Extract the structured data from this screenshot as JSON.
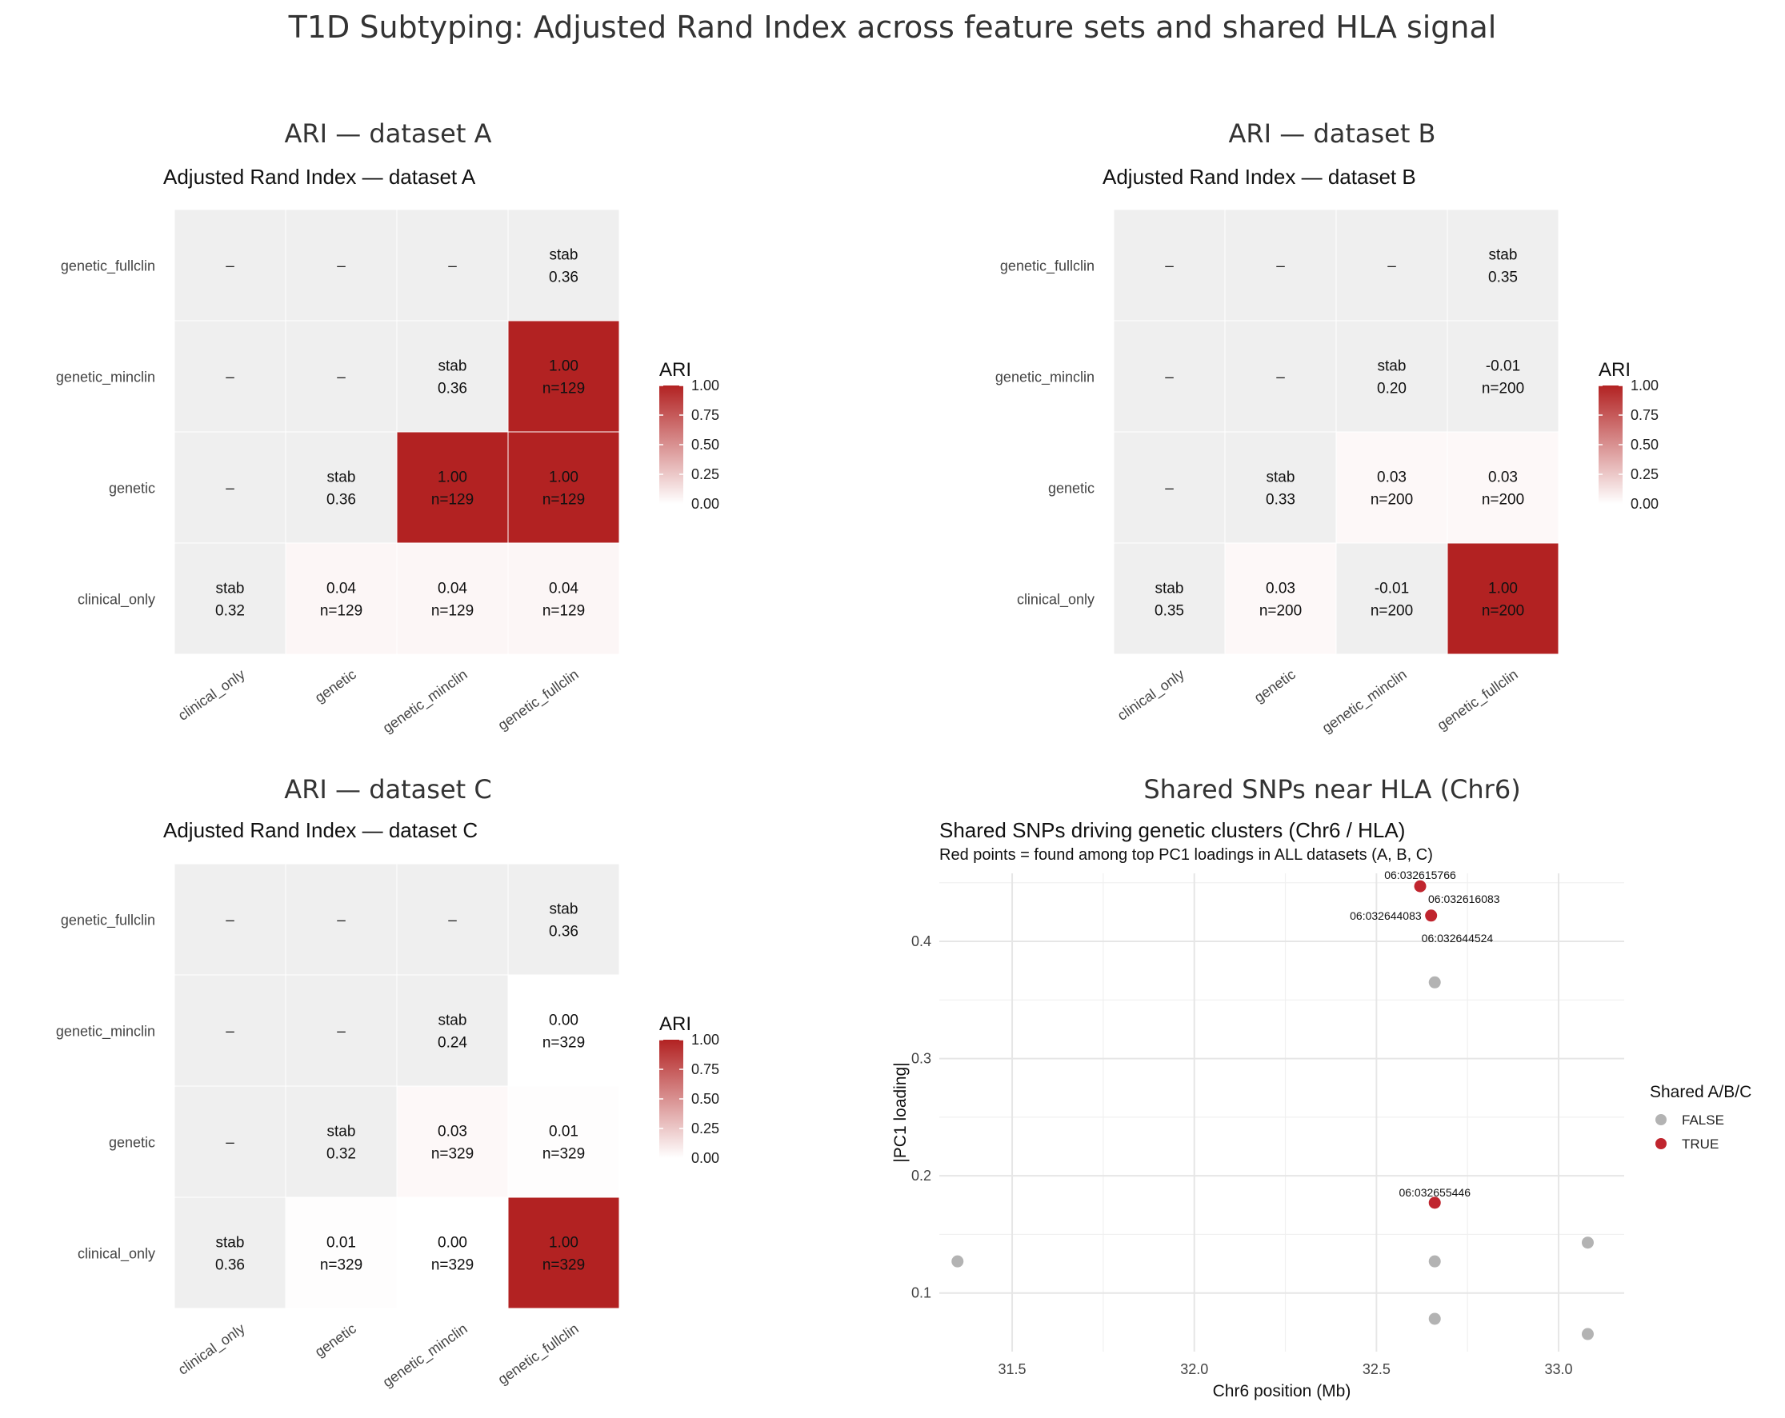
{
  "suptitle": "T1D Subtyping: Adjusted Rand Index across feature sets and shared HLA signal",
  "legend_ari": {
    "title": "ARI",
    "ticks": [
      "1.00",
      "0.75",
      "0.50",
      "0.25",
      "0.00"
    ],
    "color_low": "#ffffff",
    "color_high": "#b22222"
  },
  "heatmap_rows_top_to_bottom": [
    "genetic_fullclin",
    "genetic_minclin",
    "genetic",
    "clinical_only"
  ],
  "heatmap_cols": [
    "clinical_only",
    "genetic",
    "genetic_minclin",
    "genetic_fullclin"
  ],
  "chart_data": [
    {
      "type": "heatmap",
      "panel_title": "ARI — dataset A",
      "title": "Adjusted Rand Index — dataset A",
      "cells": [
        [
          {
            "l1": "–",
            "l2": ""
          },
          {
            "l1": "–",
            "l2": ""
          },
          {
            "l1": "–",
            "l2": ""
          },
          {
            "l1": "stab",
            "l2": "0.36"
          }
        ],
        [
          {
            "l1": "–",
            "l2": ""
          },
          {
            "l1": "–",
            "l2": ""
          },
          {
            "l1": "stab",
            "l2": "0.36"
          },
          {
            "l1": "1.00",
            "l2": "n=129",
            "v": 1.0
          }
        ],
        [
          {
            "l1": "–",
            "l2": ""
          },
          {
            "l1": "stab",
            "l2": "0.36"
          },
          {
            "l1": "1.00",
            "l2": "n=129",
            "v": 1.0
          },
          {
            "l1": "1.00",
            "l2": "n=129",
            "v": 1.0
          }
        ],
        [
          {
            "l1": "stab",
            "l2": "0.32"
          },
          {
            "l1": "0.04",
            "l2": "n=129",
            "v": 0.04
          },
          {
            "l1": "0.04",
            "l2": "n=129",
            "v": 0.04
          },
          {
            "l1": "0.04",
            "l2": "n=129",
            "v": 0.04
          }
        ]
      ]
    },
    {
      "type": "heatmap",
      "panel_title": "ARI — dataset B",
      "title": "Adjusted Rand Index — dataset B",
      "cells": [
        [
          {
            "l1": "–",
            "l2": ""
          },
          {
            "l1": "–",
            "l2": ""
          },
          {
            "l1": "–",
            "l2": ""
          },
          {
            "l1": "stab",
            "l2": "0.35"
          }
        ],
        [
          {
            "l1": "–",
            "l2": ""
          },
          {
            "l1": "–",
            "l2": ""
          },
          {
            "l1": "stab",
            "l2": "0.20"
          },
          {
            "l1": "-0.01",
            "l2": "n=200",
            "v": -0.01
          }
        ],
        [
          {
            "l1": "–",
            "l2": ""
          },
          {
            "l1": "stab",
            "l2": "0.33"
          },
          {
            "l1": "0.03",
            "l2": "n=200",
            "v": 0.03
          },
          {
            "l1": "0.03",
            "l2": "n=200",
            "v": 0.03
          }
        ],
        [
          {
            "l1": "stab",
            "l2": "0.35"
          },
          {
            "l1": "0.03",
            "l2": "n=200",
            "v": 0.03
          },
          {
            "l1": "-0.01",
            "l2": "n=200",
            "v": -0.01
          },
          {
            "l1": "1.00",
            "l2": "n=200",
            "v": 1.0
          }
        ]
      ]
    },
    {
      "type": "heatmap",
      "panel_title": "ARI — dataset C",
      "title": "Adjusted Rand Index — dataset C",
      "cells": [
        [
          {
            "l1": "–",
            "l2": ""
          },
          {
            "l1": "–",
            "l2": ""
          },
          {
            "l1": "–",
            "l2": ""
          },
          {
            "l1": "stab",
            "l2": "0.36"
          }
        ],
        [
          {
            "l1": "–",
            "l2": ""
          },
          {
            "l1": "–",
            "l2": ""
          },
          {
            "l1": "stab",
            "l2": "0.24"
          },
          {
            "l1": "0.00",
            "l2": "n=329",
            "v": 0.0
          }
        ],
        [
          {
            "l1": "–",
            "l2": ""
          },
          {
            "l1": "stab",
            "l2": "0.32"
          },
          {
            "l1": "0.03",
            "l2": "n=329",
            "v": 0.03
          },
          {
            "l1": "0.01",
            "l2": "n=329",
            "v": 0.01
          }
        ],
        [
          {
            "l1": "stab",
            "l2": "0.36"
          },
          {
            "l1": "0.01",
            "l2": "n=329",
            "v": 0.01
          },
          {
            "l1": "0.00",
            "l2": "n=329",
            "v": 0.0
          },
          {
            "l1": "1.00",
            "l2": "n=329",
            "v": 1.0
          }
        ]
      ]
    },
    {
      "type": "scatter",
      "panel_title": "Shared SNPs near HLA (Chr6)",
      "title": "Shared SNPs driving genetic clusters (Chr6 / HLA)",
      "subtitle": "Red points = found among top PC1 loadings in ALL datasets (A, B, C)",
      "xlabel": "Chr6 position (Mb)",
      "ylabel": "|PC1 loading|",
      "xlim": [
        31.3,
        33.18
      ],
      "ylim": [
        0.05,
        0.458
      ],
      "xticks": [
        31.5,
        32.0,
        32.5,
        33.0
      ],
      "xtick_labels": [
        "31.5",
        "32.0",
        "32.5",
        "33.0"
      ],
      "yticks": [
        0.1,
        0.2,
        0.3,
        0.4
      ],
      "ytick_labels": [
        "0.1",
        "0.2",
        "0.3",
        "0.4"
      ],
      "legend": {
        "title": "Shared A/B/C",
        "false_label": "FALSE",
        "true_label": "TRUE",
        "false_color": "#b3b3b3",
        "true_color": "#c0252e"
      },
      "points": [
        {
          "x": 32.62,
          "y": 0.447,
          "shared": true,
          "label": "06:032615766"
        },
        {
          "x": 32.62,
          "y": 0.447,
          "shared": true,
          "label": "06:032616083"
        },
        {
          "x": 32.65,
          "y": 0.422,
          "shared": true,
          "label": "06:032644083"
        },
        {
          "x": 32.65,
          "y": 0.422,
          "shared": true,
          "label": "06:032644524"
        },
        {
          "x": 32.66,
          "y": 0.177,
          "shared": true,
          "label": "06:032655446"
        },
        {
          "x": 32.66,
          "y": 0.365,
          "shared": false
        },
        {
          "x": 31.35,
          "y": 0.127,
          "shared": false
        },
        {
          "x": 32.66,
          "y": 0.127,
          "shared": false
        },
        {
          "x": 32.66,
          "y": 0.078,
          "shared": false
        },
        {
          "x": 33.08,
          "y": 0.143,
          "shared": false
        },
        {
          "x": 33.08,
          "y": 0.065,
          "shared": false
        }
      ]
    }
  ]
}
